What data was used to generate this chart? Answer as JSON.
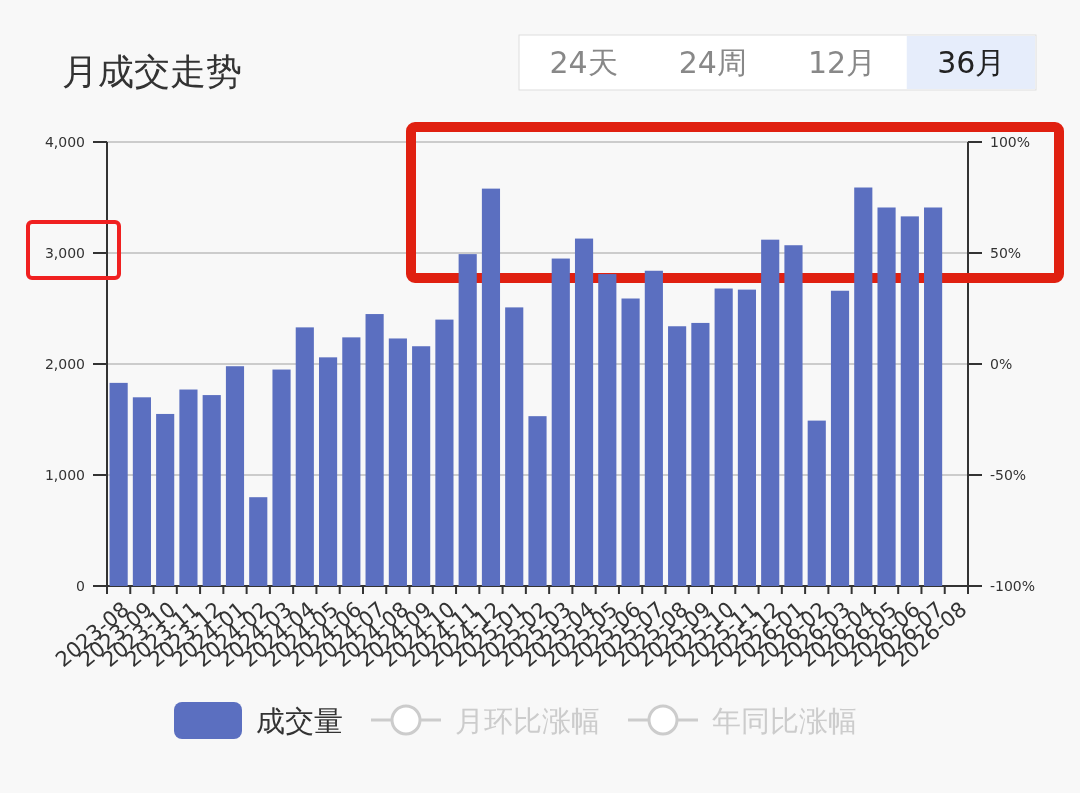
{
  "chart_data": {
    "type": "bar",
    "title": "月成交走势",
    "annotations": [
      "24天",
      "24周",
      "12月",
      "36月"
    ],
    "categories": [
      "2023-08",
      "2023-09",
      "2023-10",
      "2023-11",
      "2023-12",
      "2024-01",
      "2024-02",
      "2024-03",
      "2024-04",
      "2024-05",
      "2024-06",
      "2024-07",
      "2024-08",
      "2024-09",
      "2024-10",
      "2024-11",
      "2024-12",
      "2025-01",
      "2025-02",
      "2025-03",
      "2025-04",
      "2025-05",
      "2025-06",
      "2025-07",
      "2025-08",
      "2025-09",
      "2025-10",
      "2025-11",
      "2025-12",
      "2026-01",
      "2026-02",
      "2026-03",
      "2026-04",
      "2026-05",
      "2026-06",
      "2026-07",
      "2026-08"
    ],
    "series": [
      {
        "name": "成交量",
        "color": "#5b6fc0",
        "values": [
          1830,
          1700,
          1550,
          1770,
          1720,
          1980,
          800,
          1950,
          2330,
          2060,
          2240,
          2450,
          2230,
          2160,
          2400,
          2990,
          3580,
          2510,
          1530,
          2950,
          3130,
          2810,
          2590,
          2840,
          2340,
          2370,
          2680,
          2670,
          3120,
          3070,
          1490,
          2660,
          3590,
          3410,
          3330,
          3410,
          null
        ]
      },
      {
        "name": "月环比涨幅",
        "type": "line",
        "color": "#cccccc",
        "marker": "circle",
        "values": [
          null,
          null,
          null,
          null,
          null,
          null,
          null,
          null,
          null,
          null,
          null,
          null,
          null,
          null,
          null,
          null,
          null,
          null,
          null,
          null,
          null,
          null,
          null,
          null,
          null,
          null,
          null,
          null,
          null,
          null,
          null,
          null,
          null,
          null,
          null,
          null,
          null
        ]
      },
      {
        "name": "年同比涨幅",
        "type": "line",
        "color": "#cccccc",
        "marker": "circle",
        "values": [
          null,
          null,
          null,
          null,
          null,
          null,
          null,
          null,
          null,
          null,
          null,
          null,
          null,
          null,
          null,
          null,
          null,
          null,
          null,
          null,
          null,
          null,
          null,
          null,
          null,
          null,
          null,
          null,
          null,
          null,
          null,
          null,
          null,
          null,
          null,
          null,
          null
        ]
      }
    ],
    "ylim": [
      0,
      4000
    ],
    "yticks": [
      0,
      {
        "value": 1000,
        "label": "1,000"
      },
      {
        "value": 2000,
        "label": "2,000"
      },
      {
        "value": 3000,
        "label": "3,000"
      },
      {
        "value": 4000,
        "label": "4,000"
      }
    ],
    "y2lim": [
      -100,
      100
    ],
    "y2ticks": [
      {
        "value": -100,
        "label": "-100%"
      },
      {
        "value": -50,
        "label": "-50%"
      },
      {
        "value": 0,
        "label": "0%"
      },
      {
        "value": 50,
        "label": "50%"
      },
      {
        "value": 100,
        "label": "100%"
      }
    ],
    "grid": "y",
    "legend": "bottom"
  }
}
